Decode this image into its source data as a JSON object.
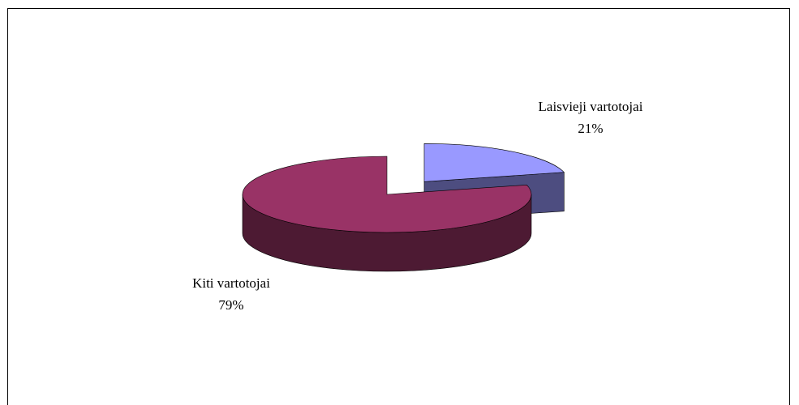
{
  "chart_data": {
    "type": "pie3d",
    "categories": [
      "Laisvieji vartotojai",
      "Kiti vartotojai"
    ],
    "values": [
      21,
      79
    ],
    "value_labels": [
      "21%",
      "79%"
    ],
    "colors": [
      "#9999ff",
      "#993366"
    ],
    "side_colors": [
      "#4d4d80",
      "#4d1a33"
    ],
    "exploded": [
      true,
      false
    ]
  }
}
